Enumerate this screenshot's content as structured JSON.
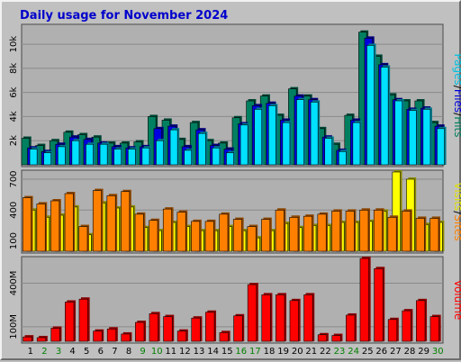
{
  "title": "Daily usage for November 2024",
  "colors": {
    "title": "#0000cc",
    "background": "#c0c0c0",
    "plot_bg": "#b0b0b0",
    "grid": "#8a8a8a",
    "hits": "#008060",
    "files": "#0000e0",
    "pages": "#00e0ff",
    "visits": "#ffff00",
    "sites": "#ff8000",
    "volume": "#ff0000",
    "day_weekday": "#000000",
    "day_weekend": "#008000"
  },
  "chart_data": [
    {
      "type": "bar",
      "name": "hits-files-pages",
      "categories": [
        "1",
        "2",
        "3",
        "4",
        "5",
        "6",
        "7",
        "8",
        "9",
        "10",
        "11",
        "12",
        "13",
        "14",
        "15",
        "16",
        "17",
        "18",
        "19",
        "20",
        "21",
        "22",
        "23",
        "24",
        "25",
        "26",
        "27",
        "28",
        "29",
        "30"
      ],
      "weekend_days": [
        "2",
        "3",
        "9",
        "10",
        "16",
        "17",
        "23",
        "24",
        "30"
      ],
      "ylim": [
        0,
        11500
      ],
      "yticks": [
        {
          "v": 2000,
          "label": "2k"
        },
        {
          "v": 4000,
          "label": "4k"
        },
        {
          "v": 6000,
          "label": "6k"
        },
        {
          "v": 8000,
          "label": "8k"
        },
        {
          "v": 10000,
          "label": "10k"
        }
      ],
      "axis_label_parts": [
        {
          "text": "Pages",
          "color": "#00c0e0"
        },
        {
          "text": "/",
          "color": "#000000"
        },
        {
          "text": "Files",
          "color": "#0000e0"
        },
        {
          "text": "/",
          "color": "#000000"
        },
        {
          "text": "Hits",
          "color": "#008060"
        }
      ],
      "series": [
        {
          "name": "Hits",
          "values": [
            2200,
            1600,
            2000,
            2700,
            2500,
            2300,
            1800,
            1800,
            1900,
            4000,
            3700,
            2100,
            3500,
            2000,
            1800,
            3900,
            5300,
            5700,
            4100,
            6300,
            5700,
            3000,
            1700,
            4100,
            11000,
            9000,
            5800,
            5300,
            5300,
            3500
          ]
        },
        {
          "name": "Files",
          "values": [
            1400,
            1100,
            1700,
            2300,
            2100,
            1800,
            1500,
            1400,
            1500,
            3000,
            3200,
            1500,
            2900,
            1600,
            1300,
            3400,
            4900,
            5100,
            3700,
            5700,
            5400,
            2300,
            1200,
            3700,
            10500,
            8300,
            5400,
            4600,
            4700,
            3200
          ]
        },
        {
          "name": "Pages",
          "values": [
            1300,
            1000,
            1500,
            2000,
            1700,
            1700,
            1300,
            1300,
            1400,
            2000,
            2900,
            1200,
            2600,
            1400,
            1000,
            3300,
            4600,
            4900,
            3500,
            5400,
            5200,
            2200,
            1100,
            3500,
            9900,
            8100,
            5300,
            4500,
            4600,
            3000
          ]
        }
      ]
    },
    {
      "type": "bar",
      "name": "visits-sites",
      "categories": [
        "1",
        "2",
        "3",
        "4",
        "5",
        "6",
        "7",
        "8",
        "9",
        "10",
        "11",
        "12",
        "13",
        "14",
        "15",
        "16",
        "17",
        "18",
        "19",
        "20",
        "21",
        "22",
        "23",
        "24",
        "25",
        "26",
        "27",
        "28",
        "29",
        "30"
      ],
      "ylim": [
        0,
        770
      ],
      "yticks": [
        {
          "v": 100,
          "label": "100"
        },
        {
          "v": 400,
          "label": "400"
        },
        {
          "v": 700,
          "label": "700"
        }
      ],
      "axis_label_parts": [
        {
          "text": "Visits",
          "color": "#e0e000"
        },
        {
          "text": "/",
          "color": "#000000"
        },
        {
          "text": "Sites",
          "color": "#ff8000"
        }
      ],
      "series": [
        {
          "name": "Visits",
          "values": [
            400,
            330,
            350,
            430,
            160,
            470,
            420,
            430,
            230,
            200,
            280,
            240,
            200,
            200,
            240,
            200,
            130,
            200,
            270,
            230,
            250,
            250,
            280,
            280,
            290,
            390,
            770,
            700,
            260,
            280
          ]
        },
        {
          "name": "Sites",
          "values": [
            520,
            460,
            490,
            560,
            240,
            590,
            540,
            580,
            360,
            300,
            410,
            380,
            290,
            290,
            360,
            310,
            240,
            310,
            400,
            330,
            340,
            360,
            390,
            390,
            400,
            400,
            330,
            390,
            320,
            320
          ]
        }
      ]
    },
    {
      "type": "bar",
      "name": "volume",
      "categories": [
        "1",
        "2",
        "3",
        "4",
        "5",
        "6",
        "7",
        "8",
        "9",
        "10",
        "11",
        "12",
        "13",
        "14",
        "15",
        "16",
        "17",
        "18",
        "19",
        "20",
        "21",
        "22",
        "23",
        "24",
        "25",
        "26",
        "27",
        "28",
        "29",
        "30"
      ],
      "ylim": [
        0,
        570
      ],
      "yticks": [
        {
          "v": 100,
          "label": "100M"
        },
        {
          "v": 400,
          "label": "400M"
        }
      ],
      "axis_label_parts": [
        {
          "text": "Volume",
          "color": "#ff0000"
        }
      ],
      "series": [
        {
          "name": "Volume",
          "values": [
            30,
            25,
            90,
            270,
            290,
            70,
            85,
            50,
            130,
            190,
            170,
            70,
            160,
            200,
            60,
            175,
            390,
            320,
            320,
            280,
            320,
            45,
            40,
            180,
            570,
            500,
            150,
            210,
            280,
            170
          ]
        }
      ]
    }
  ]
}
